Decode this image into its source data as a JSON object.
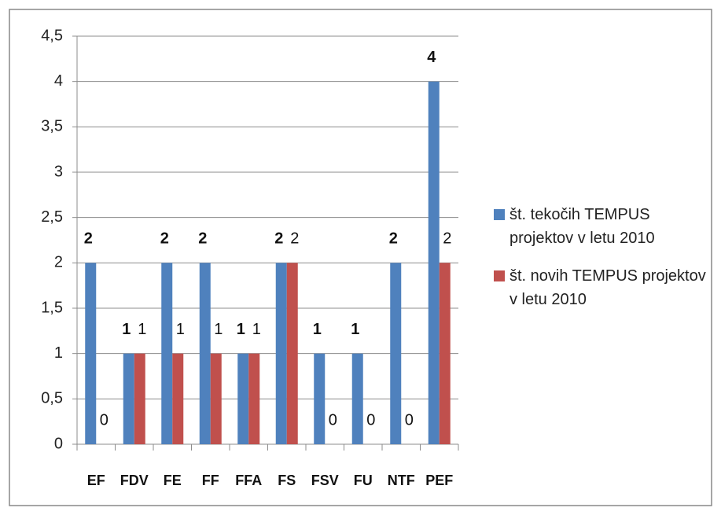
{
  "chart_data": {
    "type": "bar",
    "categories": [
      "EF",
      "FDV",
      "FE",
      "FF",
      "FFA",
      "FS",
      "FSV",
      "FU",
      "NTF",
      "PEF"
    ],
    "series": [
      {
        "name": "št. tekočih TEMPUS projektov v letu 2010",
        "color": "#4f81bd",
        "values": [
          2,
          1,
          2,
          2,
          1,
          2,
          1,
          1,
          2,
          4
        ]
      },
      {
        "name": "št. novih TEMPUS projektov v letu 2010",
        "color": "#c0504d",
        "values": [
          0,
          1,
          1,
          1,
          1,
          2,
          0,
          0,
          0,
          2
        ]
      }
    ],
    "ylim": [
      0,
      4.5
    ],
    "yticks": [
      0,
      {
        "value": 0.5,
        "label": "0,5"
      },
      1,
      {
        "value": 1.5,
        "label": "1,5"
      },
      2,
      {
        "value": 2.5,
        "label": "2,5"
      },
      3,
      {
        "value": 3.5,
        "label": "3,5"
      },
      4,
      {
        "value": 4.5,
        "label": "4,5"
      }
    ],
    "grid": true,
    "legend": "right"
  }
}
